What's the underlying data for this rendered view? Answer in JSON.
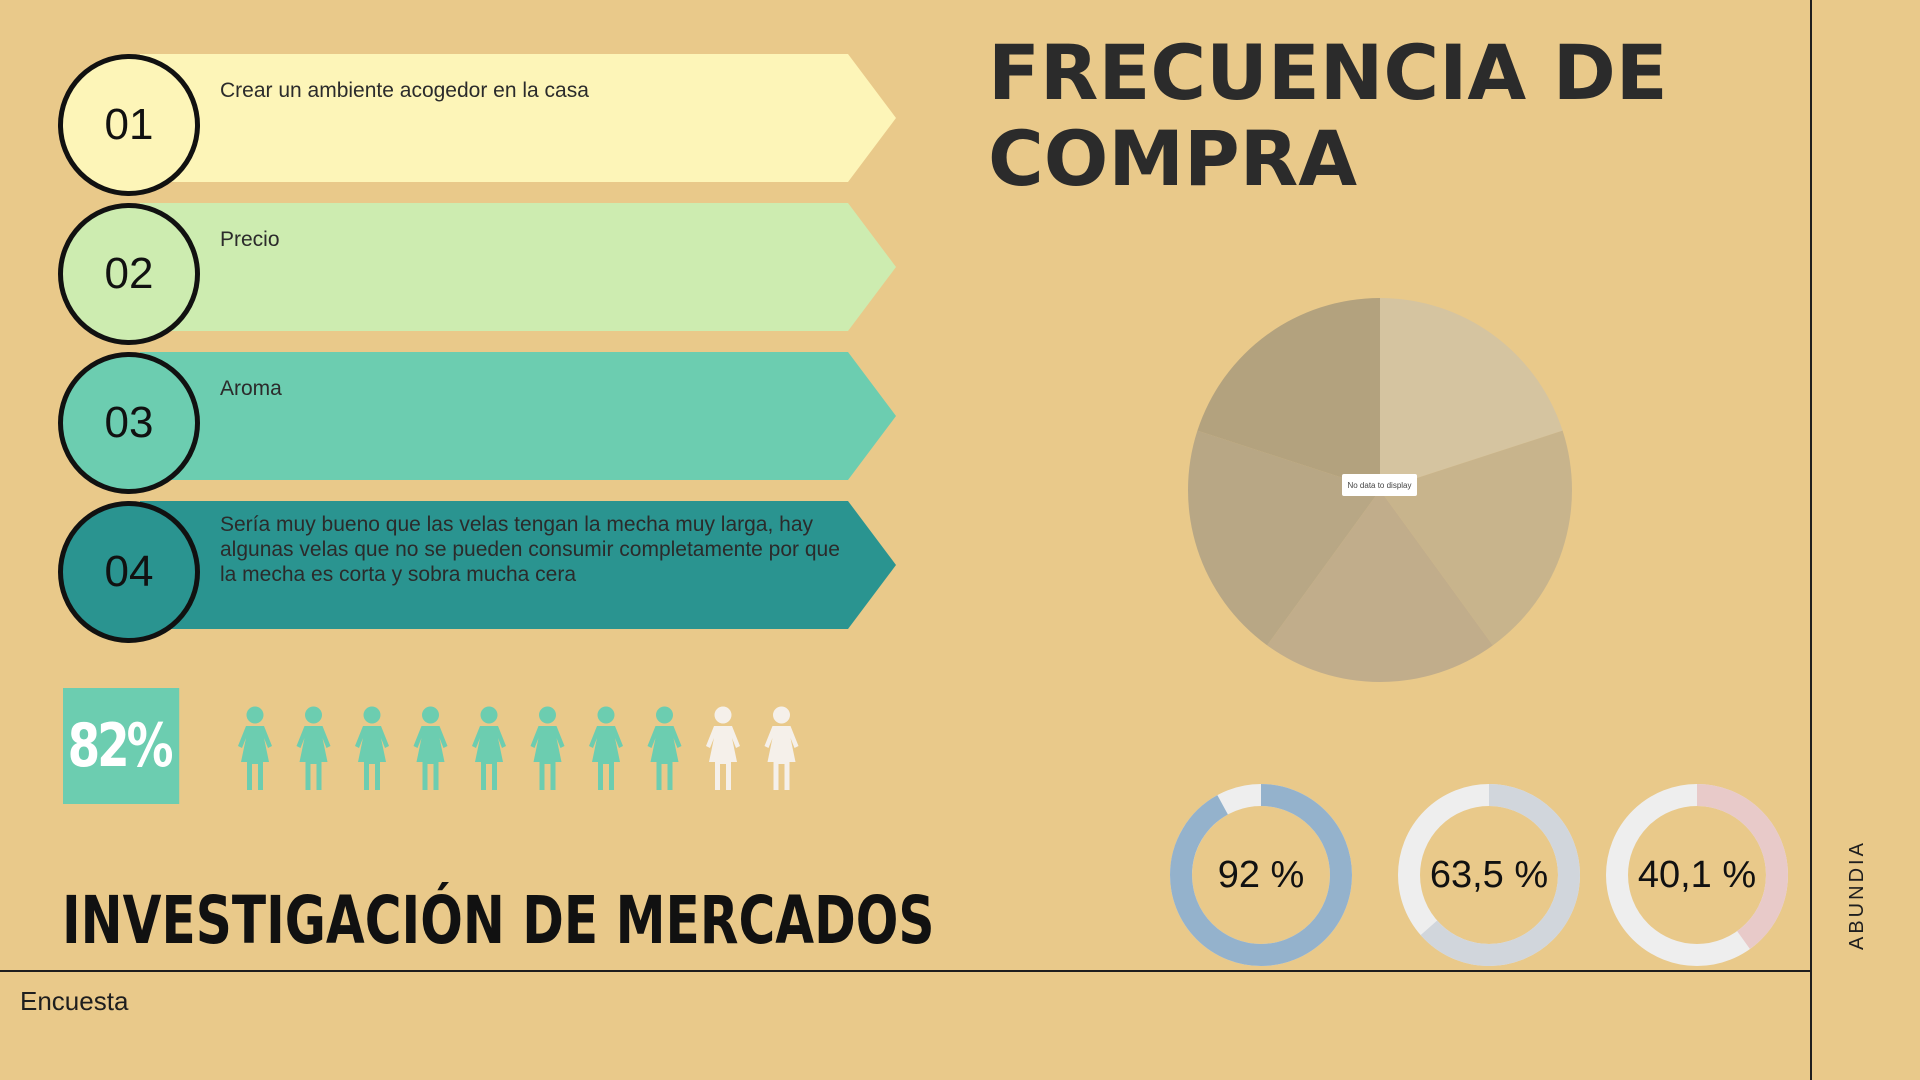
{
  "title": "FRECUENCIA DE COMPRA",
  "subtitle": "INVESTIGACIÓN DE MERCADOS",
  "footer": "Encuesta",
  "side_label": "ABUNDIA",
  "reasons": [
    {
      "number": "01",
      "text": "Crear un ambiente acogedor en la casa",
      "color": "#fdf5b8"
    },
    {
      "number": "02",
      "text": "Precio",
      "color": "#cdecb0"
    },
    {
      "number": "03",
      "text": "Aroma",
      "color": "#6ccdb0"
    },
    {
      "number": "04",
      "text": "Sería muy bueno que las velas tengan la mecha muy larga, hay algunas velas que no se pueden consumir completamente por que la mecha es corta y sobra mucha cera",
      "color": "#2a9490"
    }
  ],
  "people_stat": {
    "label": "82%",
    "total": 10,
    "filled": 8,
    "filled_color": "#6ccdb0",
    "empty_color": "#f5f0ea"
  },
  "pie": {
    "no_data_label": "No data to display",
    "colors": [
      "#d5c4a0",
      "#c8b48c",
      "#c1ad8b",
      "#b8a785",
      "#b3a27e"
    ]
  },
  "donuts": [
    {
      "label": "92 %",
      "value": 0.92,
      "color": "#94b2cc",
      "track": "#eeeeee"
    },
    {
      "label": "63,5 %",
      "value": 0.635,
      "color": "#d1d6dc",
      "track": "#eeeeee"
    },
    {
      "label": "40,1 %",
      "value": 0.401,
      "color": "#e8cac9",
      "track": "#eeeeee"
    }
  ]
}
